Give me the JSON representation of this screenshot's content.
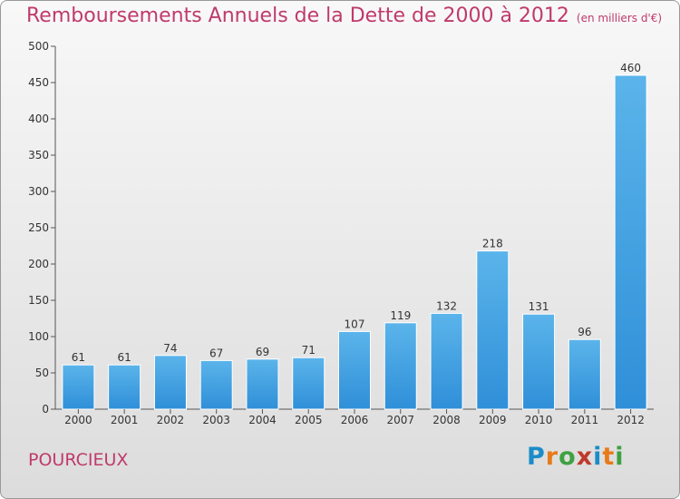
{
  "header": {
    "title": "Remboursements Annuels de la Dette de 2000 à 2012",
    "unit": "(en milliers d'€)"
  },
  "footer": {
    "city": "POURCIEUX",
    "logo": {
      "text": "Proxiti",
      "colors": [
        "#1b8cc8",
        "#e87a1a",
        "#3ea142",
        "#c0392b",
        "#1b8cc8",
        "#e87a1a",
        "#3ea142"
      ]
    }
  },
  "colors": {
    "accent": "#c03a6b",
    "bar": "#2f8fd8",
    "bar_light": "#5bb4ea"
  },
  "chart_data": {
    "type": "bar",
    "title": "Remboursements Annuels de la Dette de 2000 à 2012",
    "ylabel": "",
    "xlabel": "",
    "categories": [
      "2000",
      "2001",
      "2002",
      "2003",
      "2004",
      "2005",
      "2006",
      "2007",
      "2008",
      "2009",
      "2010",
      "2011",
      "2012"
    ],
    "values": [
      61,
      61,
      74,
      67,
      69,
      71,
      107,
      119,
      132,
      218,
      131,
      96,
      460
    ],
    "ylim": [
      0,
      500
    ],
    "yticks": [
      0,
      50,
      100,
      150,
      200,
      250,
      300,
      350,
      400,
      450,
      500
    ],
    "grid": false,
    "legend": "none"
  }
}
